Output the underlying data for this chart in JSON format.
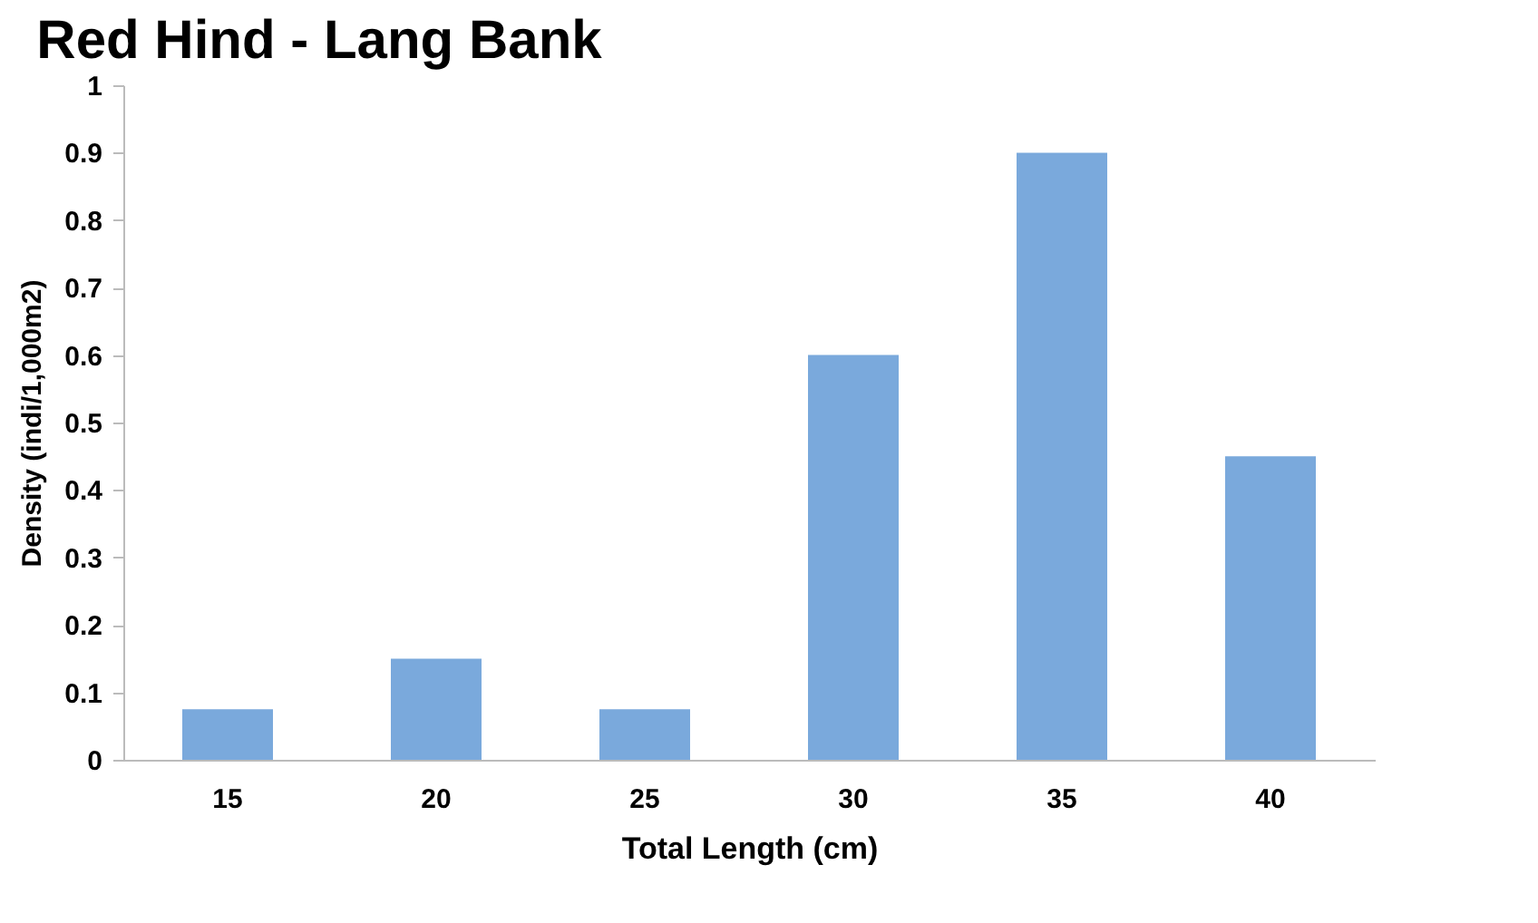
{
  "chart_data": {
    "type": "bar",
    "title": "Red Hind - Lang Bank",
    "xlabel": "Total Length (cm)",
    "ylabel": "Density (indi/1,000m2)",
    "categories": [
      "15",
      "20",
      "25",
      "30",
      "35",
      "40"
    ],
    "values": [
      0.075,
      0.15,
      0.075,
      0.6,
      0.9,
      0.45
    ],
    "color": "#7aa9dc",
    "ylim": [
      0,
      1
    ],
    "yticks": [
      0,
      0.1,
      0.2,
      0.3,
      0.4,
      0.5,
      0.6,
      0.7,
      0.8,
      0.9,
      1
    ],
    "grid": false
  }
}
